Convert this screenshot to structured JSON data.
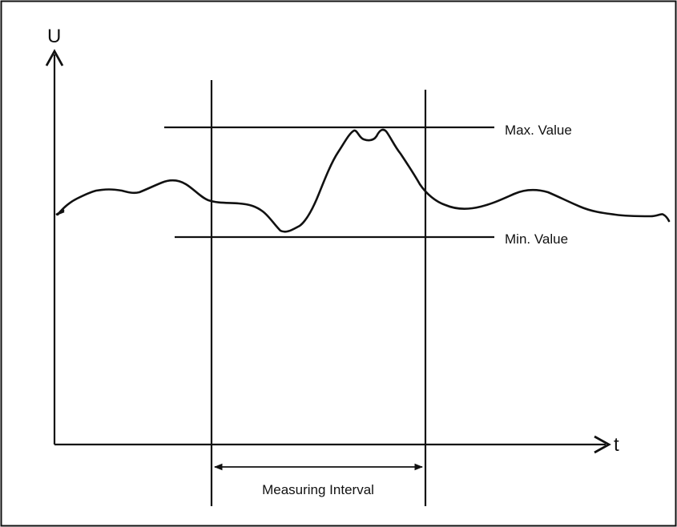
{
  "diagram": {
    "y_axis_label": "U",
    "x_axis_label": "t",
    "max_label": "Max. Value",
    "min_label": "Min. Value",
    "interval_label": "Measuring Interval"
  },
  "colors": {
    "line": "#111111",
    "background": "#ffffff"
  }
}
